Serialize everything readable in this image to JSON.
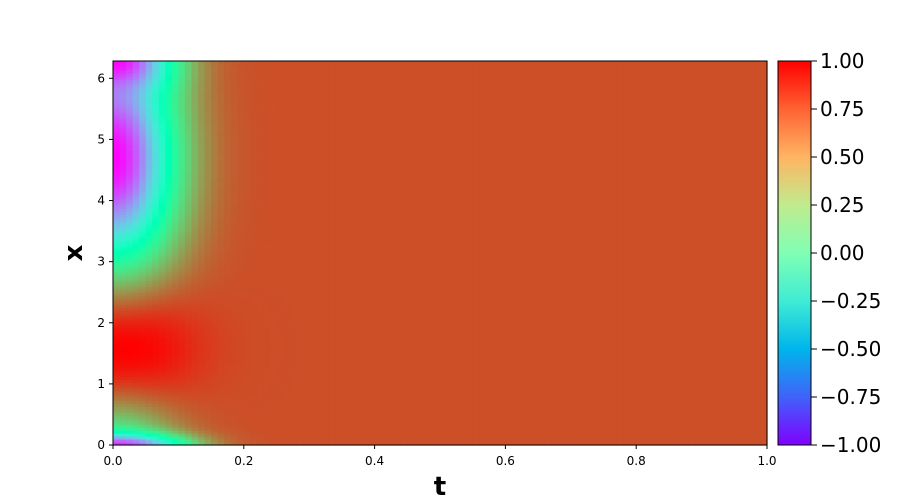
{
  "chart_data": {
    "type": "heatmap",
    "title": "",
    "xlabel": "t",
    "ylabel": "x",
    "xlim": [
      0.0,
      1.0
    ],
    "ylim": [
      0.0,
      6.283
    ],
    "xticks": [
      "0.0",
      "0.2",
      "0.4",
      "0.6",
      "0.8",
      "1.0"
    ],
    "xtick_values": [
      0.0,
      0.2,
      0.4,
      0.6,
      0.8,
      1.0
    ],
    "yticks": [
      "0",
      "1",
      "2",
      "3",
      "4",
      "5",
      "6"
    ],
    "ytick_values": [
      0,
      1,
      2,
      3,
      4,
      5,
      6
    ],
    "colormap": "rainbow",
    "colorbar": {
      "range": [
        -1.0,
        1.0
      ],
      "ticks": [
        "−1.00",
        "−0.75",
        "−0.50",
        "−0.25",
        "0.00",
        "0.25",
        "0.50",
        "0.75",
        "1.00"
      ],
      "tick_values": [
        -1.0,
        -0.75,
        -0.5,
        -0.25,
        0.0,
        0.25,
        0.5,
        0.75,
        1.0
      ]
    },
    "field_description": "u(t,x): at t=0 approx sin-like profile (~1.0 near x≈1.6, ~-1.0 near x≈4.7); converges to ~0.8 for t>0.2",
    "steady_value": 0.8
  }
}
